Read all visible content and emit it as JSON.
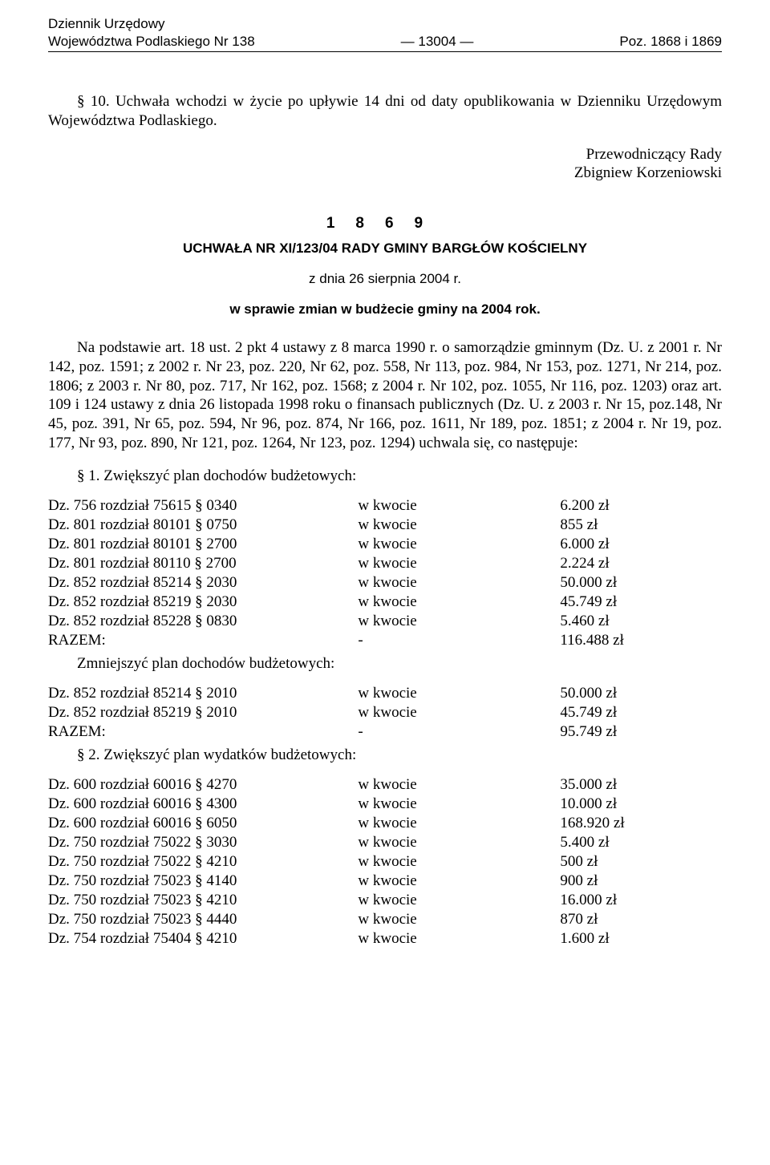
{
  "header": {
    "line1_left": "Dziennik Urzędowy",
    "line2_left": "Województwa Podlaskiego Nr 138",
    "page_number": "13004",
    "poz": "Poz. 1868 i 1869"
  },
  "intro": {
    "para": "§ 10. Uchwała wchodzi w życie po upływie 14 dni od daty opublikowania w Dzienniku Urzędowym Województwa Podlaskiego.",
    "sign_line1": "Przewodniczący Rady",
    "sign_line2": "Zbigniew Korzeniowski"
  },
  "act": {
    "number": "1869",
    "title": "UCHWAŁA NR XI/123/04 RADY GMINY BARGŁÓW KOŚCIELNY",
    "date": "z dnia 26 sierpnia 2004 r.",
    "subject": "w sprawie zmian w budżecie gminy na 2004 rok."
  },
  "legal_basis": "Na podstawie art. 18 ust. 2 pkt 4 ustawy z 8 marca 1990 r. o samorządzie gminnym (Dz. U. z 2001 r. Nr 142, poz. 1591; z 2002 r. Nr 23, poz. 220, Nr 62, poz. 558, Nr 113, poz. 984, Nr 153, poz. 1271, Nr 214, poz. 1806; z 2003 r. Nr 80, poz. 717, Nr 162, poz. 1568; z 2004 r. Nr 102, poz. 1055, Nr 116, poz. 1203) oraz art. 109 i 124 ustawy z dnia 26 listopada 1998 roku o finansach publicznych (Dz. U. z 2003 r. Nr 15, poz.148, Nr 45, poz. 391, Nr 65, poz. 594, Nr 96, poz. 874, Nr 166, poz. 1611, Nr 189, poz. 1851; z 2004 r. Nr 19, poz. 177, Nr 93, poz. 890, Nr 121, poz. 1264, Nr 123, poz. 1294) uchwala się, co następuje:",
  "s1_title": "§ 1. Zwiększyć plan dochodów budżetowych:",
  "increase_income": [
    {
      "c1": "Dz. 756 rozdział 75615 § 0340",
      "c2": "w kwocie",
      "c3": "6.200 zł"
    },
    {
      "c1": "Dz. 801 rozdział 80101 § 0750",
      "c2": "w kwocie",
      "c3": "855 zł"
    },
    {
      "c1": "Dz. 801 rozdział 80101 § 2700",
      "c2": "w kwocie",
      "c3": "6.000 zł"
    },
    {
      "c1": "Dz. 801 rozdział 80110 § 2700",
      "c2": "w kwocie",
      "c3": "2.224 zł"
    },
    {
      "c1": "Dz. 852 rozdział 85214 § 2030",
      "c2": "w kwocie",
      "c3": "50.000 zł"
    },
    {
      "c1": "Dz. 852 rozdział 85219 § 2030",
      "c2": "w kwocie",
      "c3": "45.749 zł"
    },
    {
      "c1": "Dz. 852 rozdział 85228 § 0830",
      "c2": "w kwocie",
      "c3": "5.460 zł"
    },
    {
      "c1": "RAZEM:",
      "c2": "-",
      "c3": "116.488 zł"
    }
  ],
  "decrease_income_title": "Zmniejszyć plan dochodów budżetowych:",
  "decrease_income": [
    {
      "c1": "Dz. 852 rozdział 85214 § 2010",
      "c2": "w kwocie",
      "c3": "50.000 zł"
    },
    {
      "c1": "Dz. 852 rozdział 85219 § 2010",
      "c2": "w kwocie",
      "c3": "45.749 zł"
    },
    {
      "c1": "RAZEM:",
      "c2": "-",
      "c3": "95.749 zł"
    }
  ],
  "s2_title": "§ 2. Zwiększyć plan wydatków budżetowych:",
  "increase_expense": [
    {
      "c1": "Dz. 600 rozdział 60016 § 4270",
      "c2": "w kwocie",
      "c3": "35.000 zł"
    },
    {
      "c1": "Dz. 600 rozdział 60016 § 4300",
      "c2": "w kwocie",
      "c3": "10.000 zł"
    },
    {
      "c1": "Dz. 600 rozdział 60016 § 6050",
      "c2": "w kwocie",
      "c3": "168.920 zł"
    },
    {
      "c1": "Dz. 750 rozdział 75022 § 3030",
      "c2": "w kwocie",
      "c3": "5.400 zł"
    },
    {
      "c1": "Dz. 750 rozdział 75022 § 4210",
      "c2": "w kwocie",
      "c3": "500 zł"
    },
    {
      "c1": "Dz. 750 rozdział 75023 § 4140",
      "c2": "w kwocie",
      "c3": "900 zł"
    },
    {
      "c1": "Dz. 750 rozdział 75023 § 4210",
      "c2": "w kwocie",
      "c3": "16.000 zł"
    },
    {
      "c1": "Dz. 750 rozdział 75023 § 4440",
      "c2": "w kwocie",
      "c3": "870 zł"
    },
    {
      "c1": "Dz. 754 rozdział 75404 § 4210",
      "c2": "w kwocie",
      "c3": "1.600 zł"
    }
  ]
}
